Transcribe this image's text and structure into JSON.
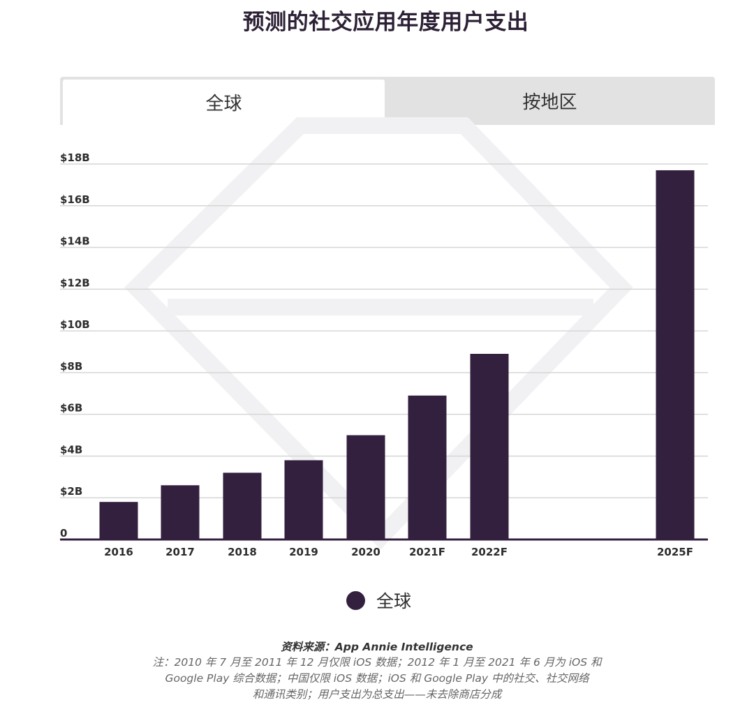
{
  "title": "预测的社交应用年度用户支出",
  "tabs": [
    {
      "label": "全球"
    },
    {
      "label": "按地区"
    }
  ],
  "legend": {
    "label": "全球"
  },
  "colors": {
    "bar": "#33203f",
    "grid": "#d6d6d6",
    "axis": "#33203f"
  },
  "footnote": {
    "source": "资料来源：App Annie Intelligence",
    "line1": "注：2010 年 7 月至 2011 年 12 月仅限 iOS 数据；2012 年 1 月至 2021 年 6 月为 iOS 和",
    "line2": "Google Play 综合数据；中国仅限 iOS 数据；iOS 和 Google Play 中的社交、社交网络",
    "line3": "和通讯类别；用户支出为总支出——未去除商店分成"
  },
  "chart_data": {
    "type": "bar",
    "title": "预测的社交应用年度用户支出",
    "categories": [
      "2016",
      "2017",
      "2018",
      "2019",
      "2020",
      "2021F",
      "2022F",
      "2025F"
    ],
    "series": [
      {
        "name": "全球",
        "values": [
          1.8,
          2.6,
          3.2,
          3.8,
          5.0,
          6.9,
          8.9,
          17.7
        ]
      }
    ],
    "unit": "USD billions",
    "yticks": [
      "0",
      "$2B",
      "$4B",
      "$6B",
      "$8B",
      "$10B",
      "$12B",
      "$14B",
      "$16B",
      "$18B"
    ],
    "ylim": [
      0,
      18
    ],
    "grid": true,
    "legend_position": "bottom-center"
  }
}
